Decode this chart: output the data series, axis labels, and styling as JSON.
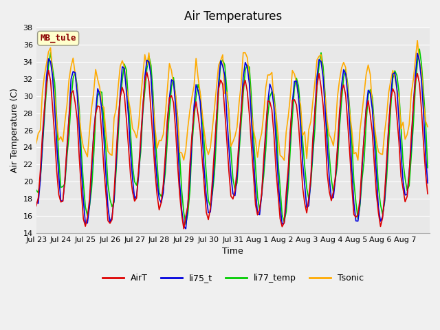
{
  "title": "Air Temperatures",
  "ylabel": "Air Temperature (C)",
  "xlabel": "Time",
  "station_label": "MB_tule",
  "ylim": [
    14,
    38
  ],
  "yticks": [
    14,
    16,
    18,
    20,
    22,
    24,
    26,
    28,
    30,
    32,
    34,
    36,
    38
  ],
  "xtick_labels": [
    "Jul 23",
    "Jul 24",
    "Jul 25",
    "Jul 26",
    "Jul 27",
    "Jul 28",
    "Jul 29",
    "Jul 30",
    "Jul 31",
    "Aug 1",
    "Aug 2",
    "Aug 3",
    "Aug 4",
    "Aug 5",
    "Aug 6",
    "Aug 7"
  ],
  "n_days": 16,
  "colors": {
    "AirT": "#dd0000",
    "li75_t": "#0000dd",
    "li77_temp": "#00cc00",
    "Tsonic": "#ffaa00"
  },
  "fig_bg": "#f0f0f0",
  "plot_bg": "#e8e8e8"
}
